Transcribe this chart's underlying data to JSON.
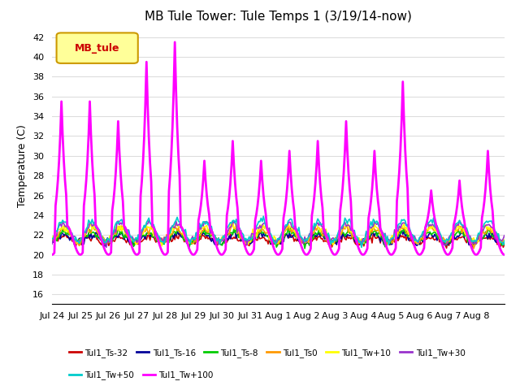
{
  "title": "MB Tule Tower: Tule Temps 1 (3/19/14-now)",
  "ylabel": "Temperature (C)",
  "xlabel": "",
  "xlim_days": 16,
  "ylim": [
    15,
    43
  ],
  "yticks": [
    16,
    18,
    20,
    22,
    24,
    26,
    28,
    30,
    32,
    34,
    36,
    38,
    40,
    42
  ],
  "xtick_labels": [
    "Jul 24",
    "Jul 25",
    "Jul 26",
    "Jul 27",
    "Jul 28",
    "Jul 29",
    "Jul 30",
    "Jul 31",
    "Aug 1",
    "Aug 2",
    "Aug 3",
    "Aug 4",
    "Aug 5",
    "Aug 6",
    "Aug 7",
    "Aug 8"
  ],
  "xtick_positions": [
    0,
    1,
    2,
    3,
    4,
    5,
    6,
    7,
    8,
    9,
    10,
    11,
    12,
    13,
    14,
    15
  ],
  "legend_box_label": "MB_tule",
  "legend_box_color": "#ffff99",
  "legend_box_border": "#cc9900",
  "series": [
    {
      "label": "Tul1_Ts-32",
      "color": "#cc0000",
      "lw": 1.2
    },
    {
      "label": "Tul1_Ts-16",
      "color": "#000099",
      "lw": 1.2
    },
    {
      "label": "Tul1_Ts-8",
      "color": "#00cc00",
      "lw": 1.2
    },
    {
      "label": "Tul1_Ts0",
      "color": "#ff9900",
      "lw": 1.2
    },
    {
      "label": "Tul1_Tw+10",
      "color": "#ffff00",
      "lw": 1.2
    },
    {
      "label": "Tul1_Tw+30",
      "color": "#9933cc",
      "lw": 1.2
    },
    {
      "label": "Tul1_Tw+50",
      "color": "#00cccc",
      "lw": 1.2
    },
    {
      "label": "Tul1_Tw+100",
      "color": "#ff00ff",
      "lw": 2.0
    }
  ],
  "background_color": "#ffffff",
  "grid_color": "#dddddd",
  "title_fontsize": 11,
  "axis_fontsize": 9,
  "tick_fontsize": 8
}
